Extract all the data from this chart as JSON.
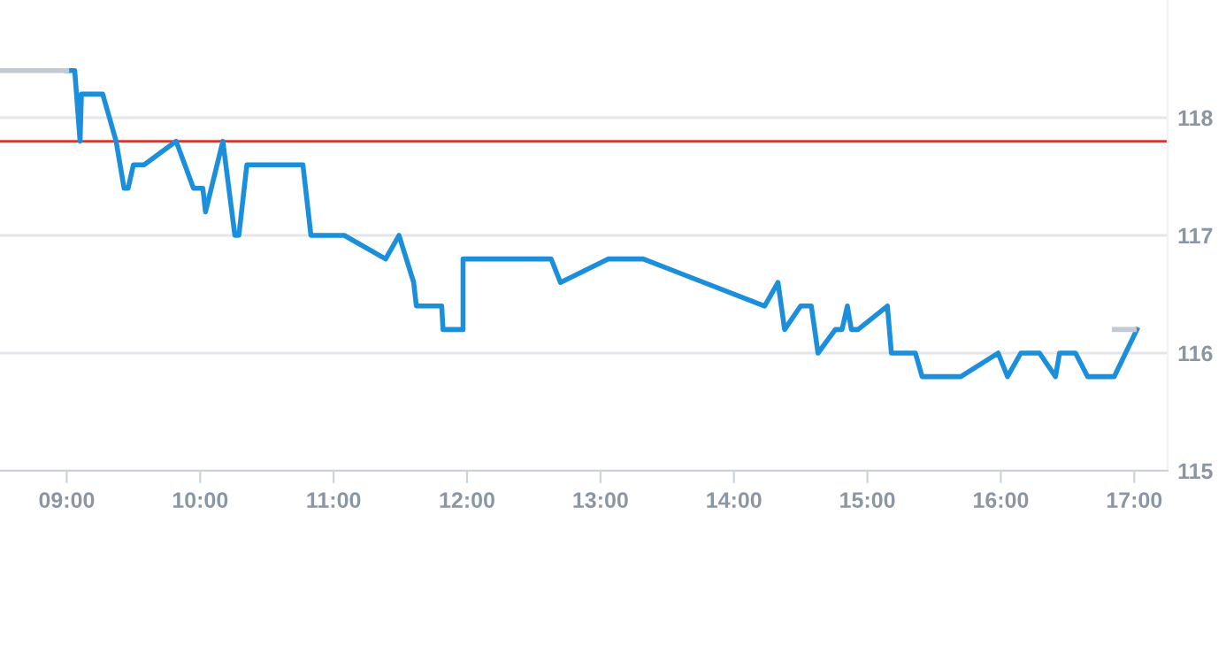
{
  "chart_data": {
    "type": "line",
    "x": [
      9.0,
      9.06,
      9.1,
      9.11,
      9.27,
      9.37,
      9.43,
      9.46,
      9.5,
      9.58,
      9.82,
      9.95,
      10.02,
      10.04,
      10.17,
      10.26,
      10.29,
      10.35,
      10.77,
      10.83,
      11.08,
      11.39,
      11.49,
      11.6,
      11.62,
      11.81,
      11.82,
      11.97,
      11.97,
      12.63,
      12.7,
      13.06,
      13.32,
      14.23,
      14.33,
      14.38,
      14.5,
      14.58,
      14.63,
      14.76,
      14.81,
      14.85,
      14.88,
      14.93,
      15.15,
      15.18,
      15.36,
      15.41,
      15.7,
      15.98,
      16.05,
      16.15,
      16.29,
      16.41,
      16.44,
      16.56,
      16.65,
      16.85,
      17.02
    ],
    "series": [
      {
        "color": "#1b8fdc",
        "values": [
          118.4,
          118.4,
          117.8,
          118.2,
          118.2,
          117.8,
          117.4,
          117.4,
          117.6,
          117.6,
          117.8,
          117.4,
          117.4,
          117.2,
          117.8,
          117.0,
          117.0,
          117.6,
          117.6,
          117.0,
          117.0,
          116.8,
          117.0,
          116.6,
          116.4,
          116.4,
          116.2,
          116.2,
          116.8,
          116.8,
          116.6,
          116.8,
          116.8,
          116.4,
          116.6,
          116.2,
          116.4,
          116.4,
          116.0,
          116.2,
          116.2,
          116.4,
          116.2,
          116.2,
          116.4,
          116.0,
          116.0,
          115.8,
          115.8,
          116.0,
          115.8,
          116.0,
          116.0,
          115.8,
          116.0,
          116.0,
          115.8,
          115.8,
          116.2
        ]
      },
      {
        "color": "#c3cad4",
        "x": [
          8.5,
          9.0,
          null,
          16.85,
          17.0
        ],
        "values": [
          118.4,
          118.4,
          null,
          116.2,
          116.2
        ]
      }
    ],
    "ref_lines": [
      {
        "axis": "y",
        "value": 117.8,
        "color": "#d9372c",
        "line_style": "solid"
      }
    ],
    "xlim": [
      8.5,
      17.25
    ],
    "xticks": [
      {
        "value": 9,
        "label": "09:00"
      },
      {
        "value": 10,
        "label": "10:00"
      },
      {
        "value": 11,
        "label": "11:00"
      },
      {
        "value": 12,
        "label": "12:00"
      },
      {
        "value": 13,
        "label": "13:00"
      },
      {
        "value": 14,
        "label": "14:00"
      },
      {
        "value": 15,
        "label": "15:00"
      },
      {
        "value": 16,
        "label": "16:00"
      },
      {
        "value": 17,
        "label": "17:00"
      }
    ],
    "ylim": [
      115,
      119
    ],
    "yticks": [
      115,
      116,
      117,
      118
    ],
    "grid": "y",
    "legend": false,
    "marker": "none",
    "line_style": "solid"
  }
}
